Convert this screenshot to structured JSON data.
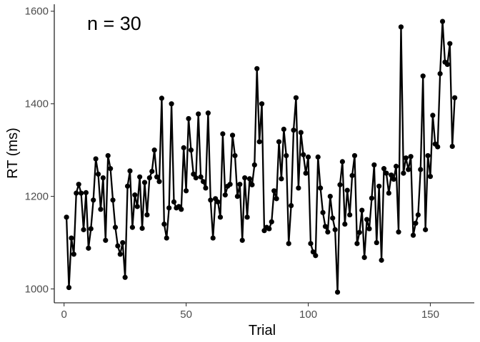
{
  "chart_data": {
    "type": "line",
    "title": "",
    "xlabel": "Trial",
    "ylabel": "RT (ms)",
    "annotation": "n = 30",
    "xlim": [
      -4,
      168
    ],
    "ylim": [
      970,
      1615
    ],
    "xticks": [
      0,
      50,
      100,
      150
    ],
    "yticks": [
      1000,
      1200,
      1400,
      1600
    ],
    "grid": false,
    "legend": "none",
    "line_color": "#000000",
    "series": [
      {
        "x": [
          1,
          2,
          3,
          4,
          5,
          6,
          7,
          8,
          9,
          10,
          11,
          12,
          13,
          14,
          15,
          16,
          17,
          18,
          19,
          20,
          21,
          22,
          23,
          24,
          25,
          26,
          27,
          28,
          29,
          30,
          31,
          32,
          33,
          34,
          35,
          36,
          37,
          38,
          39,
          40,
          41,
          42,
          43,
          44,
          45,
          46,
          47,
          48,
          49,
          50,
          51,
          52,
          53,
          54,
          55,
          56,
          57,
          58,
          59,
          60,
          61,
          62,
          63,
          64,
          65,
          66,
          67,
          68,
          69,
          70,
          71,
          72,
          73,
          74,
          75,
          76,
          77,
          78,
          79,
          80,
          81,
          82,
          83,
          84,
          85,
          86,
          87,
          88,
          89,
          90,
          91,
          92,
          93,
          94,
          95,
          96,
          97,
          98,
          99,
          100,
          101,
          102,
          103,
          104,
          105,
          106,
          107,
          108,
          109,
          110,
          111,
          112,
          113,
          114,
          115,
          116,
          117,
          118,
          119,
          120,
          121,
          122,
          123,
          124,
          125,
          126,
          127,
          128,
          129,
          130,
          131,
          132,
          133,
          134,
          135,
          136,
          137,
          138,
          139,
          140,
          141,
          142,
          143,
          144,
          145,
          146,
          147,
          148,
          149,
          150,
          151,
          152,
          153,
          154,
          155,
          156,
          157,
          158,
          159,
          160
        ],
        "y": [
          1155,
          1003,
          1110,
          1075,
          1207,
          1226,
          1207,
          1128,
          1208,
          1088,
          1130,
          1192,
          1281,
          1248,
          1172,
          1240,
          1105,
          1288,
          1260,
          1192,
          1133,
          1093,
          1075,
          1100,
          1025,
          1222,
          1255,
          1133,
          1203,
          1178,
          1242,
          1131,
          1230,
          1160,
          1240,
          1254,
          1300,
          1242,
          1232,
          1412,
          1140,
          1110,
          1175,
          1400,
          1188,
          1175,
          1178,
          1172,
          1305,
          1212,
          1368,
          1300,
          1248,
          1240,
          1378,
          1242,
          1232,
          1218,
          1380,
          1192,
          1110,
          1195,
          1188,
          1155,
          1335,
          1203,
          1222,
          1226,
          1332,
          1288,
          1200,
          1226,
          1105,
          1240,
          1155,
          1238,
          1225,
          1268,
          1476,
          1318,
          1400,
          1126,
          1133,
          1130,
          1145,
          1212,
          1195,
          1318,
          1238,
          1345,
          1288,
          1098,
          1180,
          1343,
          1413,
          1218,
          1338,
          1290,
          1250,
          1285,
          1098,
          1080,
          1072,
          1285,
          1218,
          1165,
          1135,
          1123,
          1200,
          1153,
          1128,
          993,
          1225,
          1275,
          1140,
          1213,
          1160,
          1245,
          1288,
          1098,
          1122,
          1170,
          1068,
          1150,
          1130,
          1196,
          1268,
          1100,
          1222,
          1062,
          1260,
          1250,
          1207,
          1246,
          1237,
          1265,
          1123,
          1566,
          1250,
          1283,
          1258,
          1286,
          1116,
          1142,
          1160,
          1258,
          1460,
          1128,
          1288,
          1243,
          1375,
          1313,
          1307,
          1465,
          1578,
          1490,
          1485,
          1530,
          1308,
          1413
        ]
      }
    ]
  }
}
